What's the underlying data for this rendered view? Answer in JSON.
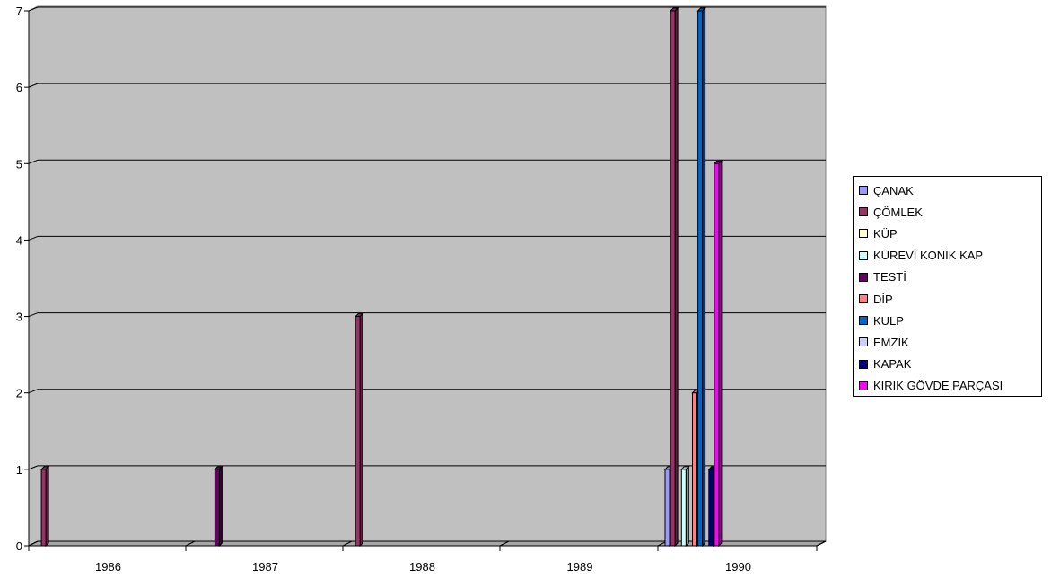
{
  "chart_data": {
    "type": "bar",
    "categories": [
      "1986",
      "1987",
      "1988",
      "1989",
      "1990"
    ],
    "ylim": [
      0,
      7
    ],
    "yticks": [
      "0",
      "1",
      "2",
      "3",
      "4",
      "5",
      "6",
      "7"
    ],
    "grid": true,
    "legend_position": "right",
    "series": [
      {
        "name": "ÇANAK",
        "color": "#9999ff",
        "values": [
          0,
          0,
          0,
          0,
          1
        ]
      },
      {
        "name": "ÇÖMLEK",
        "color": "#993366",
        "values": [
          1,
          0,
          3,
          0,
          7
        ]
      },
      {
        "name": "KÜP",
        "color": "#ffffcc",
        "values": [
          0,
          0,
          0,
          0,
          0
        ]
      },
      {
        "name": "KÜREVÎ KONİK KAP",
        "color": "#ccffff",
        "values": [
          0,
          0,
          0,
          0,
          1
        ]
      },
      {
        "name": "TESTİ",
        "color": "#660066",
        "values": [
          0,
          1,
          0,
          0,
          0
        ]
      },
      {
        "name": "DİP",
        "color": "#ff8080",
        "values": [
          0,
          0,
          0,
          0,
          2
        ]
      },
      {
        "name": "KULP",
        "color": "#0066cc",
        "values": [
          0,
          0,
          0,
          0,
          7
        ]
      },
      {
        "name": "EMZİK",
        "color": "#ccccff",
        "values": [
          0,
          0,
          0,
          0,
          0
        ]
      },
      {
        "name": "KAPAK",
        "color": "#000080",
        "values": [
          0,
          0,
          0,
          0,
          1
        ]
      },
      {
        "name": "KIRIK GÖVDE PARÇASI",
        "color": "#ff00ff",
        "values": [
          0,
          0,
          0,
          0,
          5
        ]
      }
    ]
  }
}
